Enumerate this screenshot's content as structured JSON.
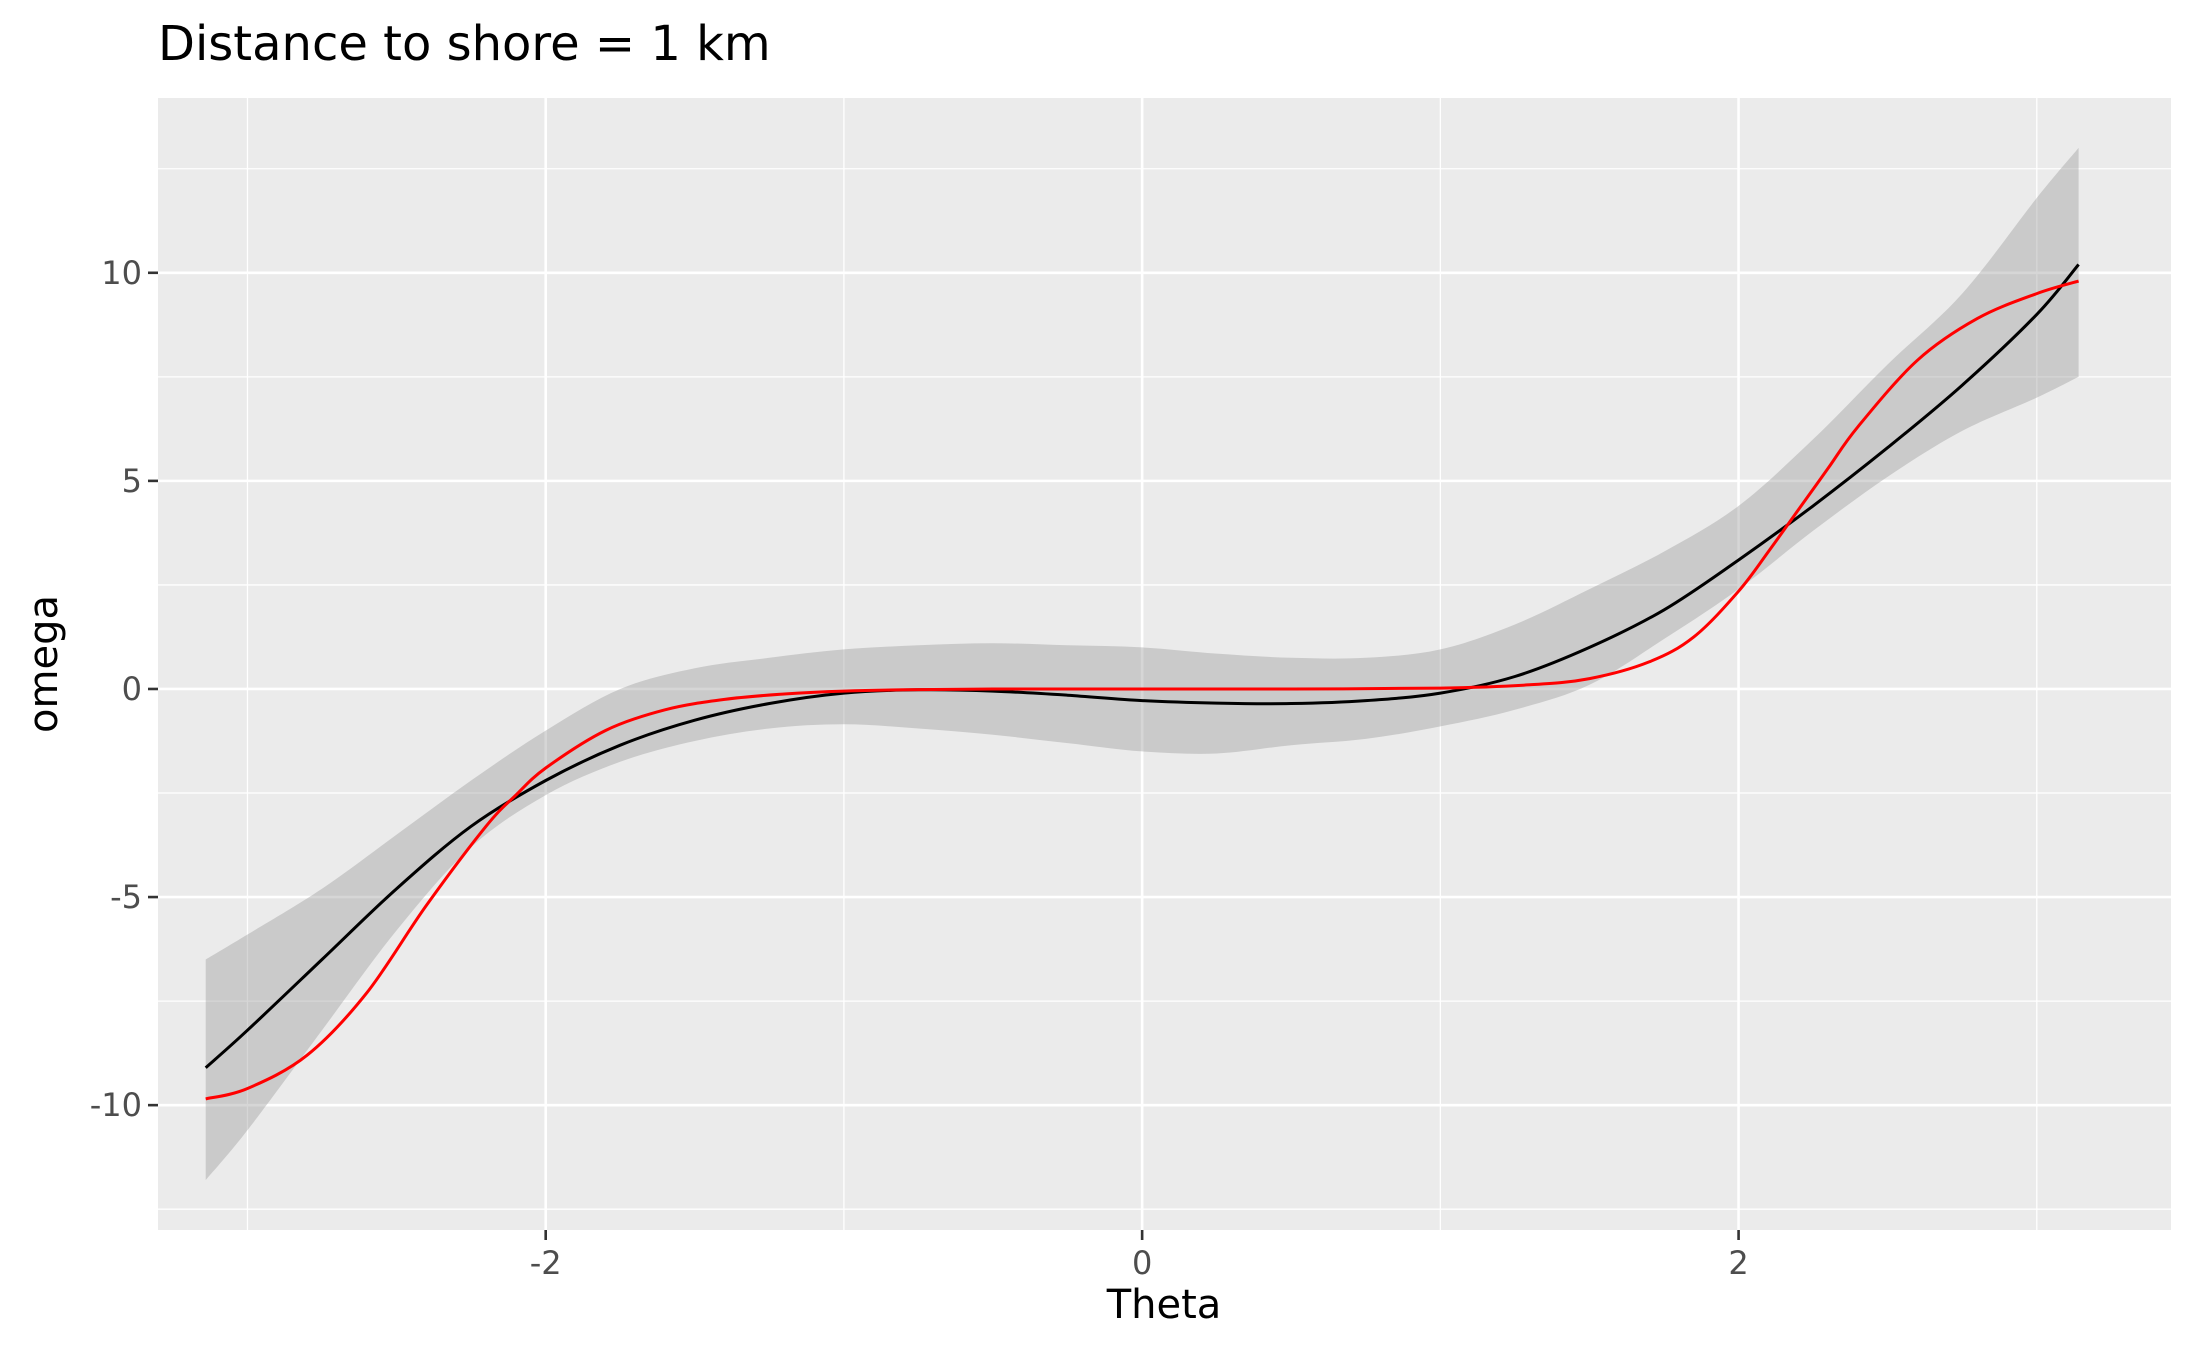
{
  "chart_data": {
    "type": "line",
    "title": "Distance to shore = 1 km",
    "xlabel": "Theta",
    "ylabel": "omega",
    "xlim": [
      -3.3,
      3.45
    ],
    "ylim": [
      -13.0,
      14.2
    ],
    "x_ticks": [
      -2,
      0,
      2
    ],
    "x_tick_labels": [
      "-2",
      "0",
      "2"
    ],
    "y_ticks": [
      -10,
      -5,
      0,
      5,
      10
    ],
    "y_tick_labels": [
      "-10",
      "-5",
      "0",
      "5",
      "10"
    ],
    "x_minor_ticks": [
      -3,
      -1,
      1,
      3
    ],
    "y_minor_ticks": [
      -12.5,
      -7.5,
      -2.5,
      2.5,
      7.5,
      12.5
    ],
    "grid": true,
    "legend": "none",
    "band": {
      "x": [
        -3.14,
        -3.0,
        -2.75,
        -2.5,
        -2.25,
        -2.0,
        -1.75,
        -1.5,
        -1.25,
        -1.0,
        -0.75,
        -0.5,
        -0.25,
        0.0,
        0.25,
        0.5,
        0.75,
        1.0,
        1.25,
        1.5,
        1.75,
        2.0,
        2.25,
        2.5,
        2.75,
        3.0,
        3.14
      ],
      "lower": [
        -11.8,
        -10.6,
        -8.2,
        -5.8,
        -3.8,
        -2.55,
        -1.75,
        -1.25,
        -0.95,
        -0.85,
        -0.95,
        -1.1,
        -1.3,
        -1.5,
        -1.55,
        -1.35,
        -1.2,
        -0.9,
        -0.5,
        0.1,
        1.2,
        2.4,
        3.8,
        5.1,
        6.2,
        7.0,
        7.5
      ],
      "upper": [
        -6.5,
        -5.9,
        -4.8,
        -3.5,
        -2.2,
        -1.0,
        0.0,
        0.5,
        0.75,
        0.95,
        1.05,
        1.1,
        1.05,
        1.0,
        0.85,
        0.75,
        0.75,
        0.95,
        1.55,
        2.4,
        3.3,
        4.4,
        6.0,
        7.8,
        9.5,
        11.8,
        13.0
      ]
    },
    "series": [
      {
        "color": "#000000",
        "x": [
          -3.14,
          -3.0,
          -2.75,
          -2.5,
          -2.25,
          -2.0,
          -1.75,
          -1.5,
          -1.25,
          -1.0,
          -0.75,
          -0.5,
          -0.25,
          0.0,
          0.25,
          0.5,
          0.75,
          1.0,
          1.25,
          1.5,
          1.75,
          2.0,
          2.25,
          2.5,
          2.75,
          3.0,
          3.14
        ],
        "y": [
          -9.1,
          -8.2,
          -6.5,
          -4.8,
          -3.3,
          -2.2,
          -1.35,
          -0.75,
          -0.35,
          -0.1,
          -0.02,
          -0.05,
          -0.15,
          -0.28,
          -0.34,
          -0.35,
          -0.28,
          -0.1,
          0.3,
          1.0,
          1.9,
          3.1,
          4.4,
          5.8,
          7.3,
          9.0,
          10.2
        ]
      },
      {
        "color": "#ff0000",
        "x": [
          -3.14,
          -3.0,
          -2.8,
          -2.6,
          -2.4,
          -2.2,
          -2.1,
          -2.0,
          -1.8,
          -1.6,
          -1.4,
          -1.2,
          -1.0,
          -0.8,
          -0.5,
          0.0,
          0.5,
          1.0,
          1.3,
          1.5,
          1.7,
          1.85,
          2.0,
          2.1,
          2.2,
          2.3,
          2.4,
          2.6,
          2.8,
          3.0,
          3.14
        ],
        "y": [
          -9.85,
          -9.6,
          -8.8,
          -7.3,
          -5.2,
          -3.3,
          -2.55,
          -1.9,
          -1.0,
          -0.5,
          -0.25,
          -0.12,
          -0.05,
          -0.02,
          0.0,
          0.0,
          0.0,
          0.02,
          0.1,
          0.25,
          0.65,
          1.25,
          2.35,
          3.3,
          4.3,
          5.3,
          6.3,
          7.9,
          8.9,
          9.5,
          9.8
        ]
      }
    ]
  }
}
